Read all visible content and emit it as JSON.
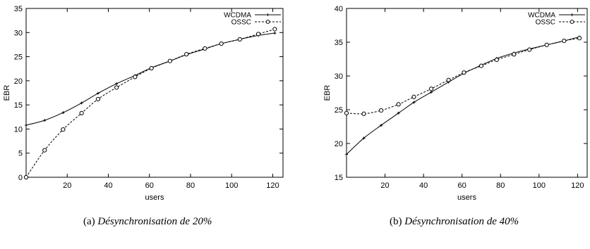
{
  "chart_data": [
    {
      "type": "line",
      "xlabel": "users",
      "ylabel": "EBR",
      "xlim": [
        0,
        125
      ],
      "ylim": [
        0,
        35
      ],
      "x_ticks": [
        20,
        40,
        60,
        80,
        100,
        120
      ],
      "y_ticks": [
        0,
        5,
        10,
        15,
        20,
        25,
        30,
        35
      ],
      "legend_position": "top-right",
      "grid": false,
      "series": [
        {
          "name": "WCDMA",
          "marker": "plus",
          "x": [
            0,
            9,
            18,
            27,
            35,
            44,
            53,
            61,
            70,
            78,
            87,
            95,
            104,
            113,
            121
          ],
          "y": [
            10.8,
            11.8,
            13.4,
            15.4,
            17.4,
            19.4,
            21.1,
            22.7,
            24.1,
            25.4,
            26.6,
            27.7,
            28.6,
            29.4,
            29.9
          ]
        },
        {
          "name": "OSSC",
          "marker": "circle",
          "x": [
            0,
            9,
            18,
            27,
            35,
            44,
            53,
            61,
            70,
            78,
            87,
            95,
            104,
            113,
            121
          ],
          "y": [
            0,
            5.6,
            9.9,
            13.3,
            16.2,
            18.6,
            20.8,
            22.6,
            24.1,
            25.5,
            26.7,
            27.7,
            28.6,
            29.7,
            30.7
          ]
        }
      ],
      "caption_label": "(a)",
      "caption_text": "Désynchronisation de 20%"
    },
    {
      "type": "line",
      "xlabel": "users",
      "ylabel": "EBR",
      "xlim": [
        0,
        125
      ],
      "ylim": [
        15,
        40
      ],
      "x_ticks": [
        20,
        40,
        60,
        80,
        100,
        120
      ],
      "y_ticks": [
        15,
        20,
        25,
        30,
        35,
        40
      ],
      "legend_position": "top-right",
      "grid": false,
      "series": [
        {
          "name": "WCDMA",
          "marker": "plus",
          "x": [
            0,
            9,
            18,
            27,
            35,
            44,
            53,
            61,
            70,
            78,
            87,
            95,
            104,
            113,
            121
          ],
          "y": [
            18.4,
            20.8,
            22.7,
            24.5,
            26.1,
            27.6,
            29.1,
            30.4,
            31.6,
            32.6,
            33.4,
            34.0,
            34.6,
            35.2,
            35.8
          ]
        },
        {
          "name": "OSSC",
          "marker": "circle",
          "x": [
            0,
            9,
            18,
            27,
            35,
            44,
            53,
            61,
            70,
            78,
            87,
            95,
            104,
            113,
            121
          ],
          "y": [
            24.5,
            24.4,
            24.9,
            25.8,
            26.9,
            28.1,
            29.4,
            30.5,
            31.5,
            32.4,
            33.2,
            33.9,
            34.6,
            35.2,
            35.6
          ]
        }
      ],
      "caption_label": "(b)",
      "caption_text": "Désynchronisation de 40%"
    }
  ]
}
